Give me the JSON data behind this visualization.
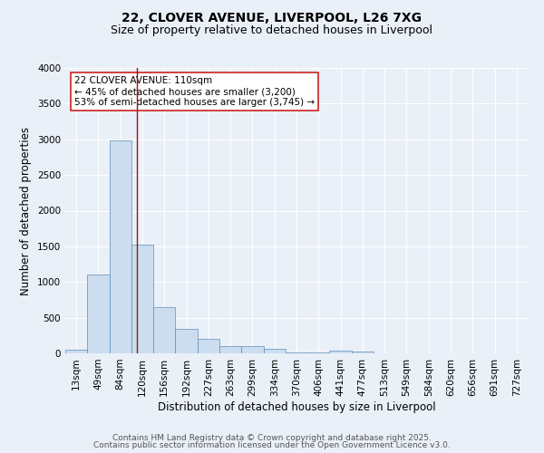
{
  "title1": "22, CLOVER AVENUE, LIVERPOOL, L26 7XG",
  "title2": "Size of property relative to detached houses in Liverpool",
  "xlabel": "Distribution of detached houses by size in Liverpool",
  "ylabel": "Number of detached properties",
  "categories": [
    "13sqm",
    "49sqm",
    "84sqm",
    "120sqm",
    "156sqm",
    "192sqm",
    "227sqm",
    "263sqm",
    "299sqm",
    "334sqm",
    "370sqm",
    "406sqm",
    "441sqm",
    "477sqm",
    "513sqm",
    "549sqm",
    "584sqm",
    "620sqm",
    "656sqm",
    "691sqm",
    "727sqm"
  ],
  "values": [
    50,
    1100,
    2980,
    1520,
    650,
    340,
    205,
    100,
    100,
    60,
    10,
    10,
    40,
    20,
    0,
    0,
    0,
    0,
    0,
    0,
    0
  ],
  "bar_color": "#ccddef",
  "bar_edge_color": "#5b8db8",
  "vline_color": "#9b1111",
  "annotation_line1": "22 CLOVER AVENUE: 110sqm",
  "annotation_line2": "← 45% of detached houses are smaller (3,200)",
  "annotation_line3": "53% of semi-detached houses are larger (3,745) →",
  "annotation_box_color": "#ffffff",
  "annotation_box_edge": "#cc2222",
  "ylim": [
    0,
    4000
  ],
  "yticks": [
    0,
    500,
    1000,
    1500,
    2000,
    2500,
    3000,
    3500,
    4000
  ],
  "footer1": "Contains HM Land Registry data © Crown copyright and database right 2025.",
  "footer2": "Contains public sector information licensed under the Open Government Licence v3.0.",
  "bg_color": "#eaf0f8",
  "plot_bg_color": "#eaf0f8",
  "grid_color": "#ffffff",
  "title_fontsize": 10,
  "subtitle_fontsize": 9,
  "axis_label_fontsize": 8.5,
  "tick_fontsize": 7.5,
  "footer_fontsize": 6.5,
  "annot_fontsize": 7.5
}
